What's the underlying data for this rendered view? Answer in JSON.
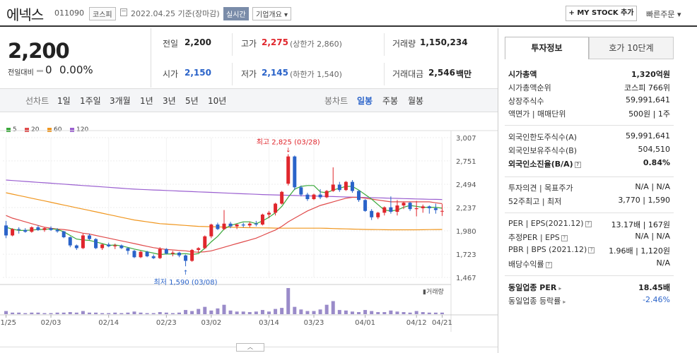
{
  "header": {
    "name": "에넥스",
    "code": "011090",
    "market": "코스피",
    "date": "2022.04.25 기준(장마감)",
    "realtime": "실시간",
    "overview": "기업개요 ▾",
    "mystock": "+ MY STOCK 추가",
    "quick_order": "빠른주문 ▾"
  },
  "price": {
    "current": "2,200",
    "change_label": "전일대비",
    "change": "0",
    "change_pct": "0.00%"
  },
  "quote": {
    "prev_label": "전일",
    "prev": "2,200",
    "high_label": "고가",
    "high": "2,275",
    "upper_limit": "(상한가 2,860)",
    "volume_label": "거래량",
    "volume": "1,150,234",
    "open_label": "시가",
    "open": "2,150",
    "low_label": "저가",
    "low": "2,145",
    "lower_limit": "(하한가 1,540)",
    "amount_label": "거래대금",
    "amount": "2,546",
    "amount_unit": "백만"
  },
  "toolbar": {
    "line_label": "선차트",
    "line_periods": [
      "1일",
      "1주일",
      "3개월",
      "1년",
      "3년",
      "5년",
      "10년"
    ],
    "candle_label": "봉차트",
    "candle_periods": [
      "일봉",
      "주봉",
      "월봉"
    ],
    "selected": "일봉"
  },
  "legend": [
    {
      "name": "5",
      "color": "#3aa83a"
    },
    {
      "name": "20",
      "color": "#e04a4a"
    },
    {
      "name": "60",
      "color": "#f0961e"
    },
    {
      "name": "120",
      "color": "#9a5fd0"
    }
  ],
  "chart_data": {
    "type": "candlestick",
    "y_ticks": [
      "3,007",
      "2,751",
      "2,494",
      "2,237",
      "1,980",
      "1,723",
      "1,467"
    ],
    "ylim": [
      1467,
      3007
    ],
    "x_ticks": [
      "01/25",
      "02/03",
      "02/14",
      "02/23",
      "03/02",
      "03/14",
      "03/23",
      "04/01",
      "04/12",
      "04/21"
    ],
    "annotations": {
      "high": "최고 2,825 (03/28)",
      "low": "최저 1,590 (03/08)"
    },
    "volume_label": "거래량",
    "candles": [
      [
        2040,
        2090,
        1900,
        1930
      ],
      [
        1930,
        2010,
        1920,
        2000
      ],
      [
        2000,
        2020,
        1950,
        1990
      ],
      [
        1990,
        2010,
        1960,
        1970
      ],
      [
        1970,
        2030,
        1960,
        2020
      ],
      [
        2020,
        2040,
        1980,
        1990
      ],
      [
        1990,
        2020,
        1970,
        2010
      ],
      [
        2010,
        2030,
        1980,
        1990
      ],
      [
        1990,
        2010,
        1960,
        1975
      ],
      [
        1975,
        1980,
        1900,
        1910
      ],
      [
        1910,
        1920,
        1800,
        1820
      ],
      [
        1820,
        1830,
        1770,
        1790
      ],
      [
        1790,
        1950,
        1780,
        1930
      ],
      [
        1930,
        1950,
        1880,
        1890
      ],
      [
        1890,
        1900,
        1780,
        1790
      ],
      [
        1790,
        1840,
        1770,
        1830
      ],
      [
        1830,
        1850,
        1800,
        1810
      ],
      [
        1810,
        1840,
        1780,
        1820
      ],
      [
        1820,
        1830,
        1780,
        1790
      ],
      [
        1790,
        1800,
        1720,
        1760
      ],
      [
        1760,
        1770,
        1680,
        1690
      ],
      [
        1690,
        1760,
        1680,
        1750
      ],
      [
        1750,
        1760,
        1690,
        1700
      ],
      [
        1700,
        1720,
        1670,
        1680
      ],
      [
        1680,
        1800,
        1670,
        1780
      ],
      [
        1780,
        1790,
        1720,
        1730
      ],
      [
        1730,
        1760,
        1700,
        1740
      ],
      [
        1740,
        1750,
        1690,
        1710
      ],
      [
        1710,
        1720,
        1590,
        1650
      ],
      [
        1650,
        1780,
        1640,
        1770
      ],
      [
        1770,
        1800,
        1740,
        1790
      ],
      [
        1790,
        1930,
        1780,
        1920
      ],
      [
        1920,
        2060,
        1900,
        2050
      ],
      [
        2050,
        2070,
        1990,
        2000
      ],
      [
        2000,
        2210,
        1990,
        2060
      ],
      [
        2060,
        2080,
        2010,
        2030
      ],
      [
        2030,
        2060,
        2000,
        2050
      ],
      [
        2050,
        2070,
        2020,
        2040
      ],
      [
        2040,
        2080,
        2020,
        2060
      ],
      [
        2060,
        2090,
        2030,
        2050
      ],
      [
        2050,
        2170,
        2040,
        2160
      ],
      [
        2160,
        2200,
        2120,
        2180
      ],
      [
        2180,
        2290,
        2150,
        2280
      ],
      [
        2280,
        2420,
        2270,
        2410
      ],
      [
        2500,
        2825,
        2480,
        2800
      ],
      [
        2800,
        2810,
        2430,
        2460
      ],
      [
        2460,
        2480,
        2360,
        2380
      ],
      [
        2380,
        2400,
        2310,
        2330
      ],
      [
        2330,
        2390,
        2320,
        2380
      ],
      [
        2380,
        2440,
        2330,
        2350
      ],
      [
        2350,
        2430,
        2340,
        2420
      ],
      [
        2420,
        2680,
        2410,
        2490
      ],
      [
        2490,
        2520,
        2410,
        2430
      ],
      [
        2430,
        2530,
        2420,
        2520
      ],
      [
        2520,
        2540,
        2400,
        2420
      ],
      [
        2420,
        2430,
        2300,
        2320
      ],
      [
        2320,
        2330,
        2190,
        2200
      ],
      [
        2200,
        2220,
        2100,
        2130
      ],
      [
        2130,
        2190,
        2110,
        2180
      ],
      [
        2180,
        2250,
        2150,
        2240
      ],
      [
        2240,
        2360,
        2170,
        2190
      ],
      [
        2190,
        2320,
        2150,
        2260
      ],
      [
        2260,
        2300,
        2220,
        2290
      ],
      [
        2290,
        2300,
        2200,
        2220
      ],
      [
        2220,
        2310,
        2140,
        2230
      ],
      [
        2230,
        2270,
        2180,
        2250
      ],
      [
        2250,
        2260,
        2170,
        2230
      ],
      [
        2230,
        2280,
        2170,
        2210
      ],
      [
        2200,
        2275,
        2145,
        2200
      ]
    ],
    "volumes": [
      6,
      3,
      3,
      2,
      3,
      3,
      2,
      2,
      3,
      3,
      4,
      3,
      6,
      3,
      3,
      2,
      2,
      3,
      2,
      3,
      5,
      3,
      2,
      2,
      4,
      3,
      2,
      3,
      8,
      6,
      10,
      14,
      7,
      11,
      18,
      7,
      5,
      5,
      4,
      5,
      8,
      5,
      10,
      12,
      50,
      14,
      9,
      6,
      6,
      9,
      18,
      25,
      8,
      7,
      5,
      4,
      8,
      6,
      4,
      4,
      7,
      5,
      4,
      3,
      6,
      4,
      3,
      3,
      3
    ],
    "ma5": [
      2020,
      2000,
      1985,
      1985,
      1990,
      1995,
      1997,
      2002,
      1997,
      1970,
      1930,
      1890,
      1880,
      1875,
      1858,
      1840,
      1820,
      1825,
      1815,
      1798,
      1780,
      1765,
      1750,
      1735,
      1720,
      1725,
      1727,
      1725,
      1730,
      1720,
      1730,
      1790,
      1860,
      1920,
      2000,
      2040,
      2060,
      2080,
      2080,
      2060,
      2090,
      2130,
      2180,
      2250,
      2350,
      2440,
      2470,
      2480,
      2480,
      2410,
      2400,
      2430,
      2450,
      2470,
      2470,
      2430,
      2380,
      2330,
      2270,
      2210,
      2200,
      2210,
      2240,
      2260,
      2250,
      2240,
      2240,
      2240,
      2230
    ],
    "ma20": [
      2150,
      2120,
      2100,
      2080,
      2060,
      2040,
      2020,
      2010,
      2000,
      1995,
      1985,
      1970,
      1955,
      1945,
      1930,
      1915,
      1900,
      1885,
      1870,
      1855,
      1840,
      1825,
      1810,
      1795,
      1785,
      1775,
      1770,
      1765,
      1760,
      1750,
      1745,
      1750,
      1760,
      1780,
      1800,
      1820,
      1840,
      1860,
      1880,
      1900,
      1930,
      1960,
      1990,
      2030,
      2080,
      2120,
      2160,
      2200,
      2230,
      2260,
      2280,
      2300,
      2320,
      2340,
      2350,
      2350,
      2340,
      2330,
      2320,
      2310,
      2300,
      2300,
      2300,
      2300,
      2300,
      2300,
      2300,
      2290,
      2280
    ],
    "ma60": [
      2400,
      2385,
      2370,
      2355,
      2340,
      2325,
      2310,
      2295,
      2280,
      2265,
      2250,
      2235,
      2220,
      2205,
      2190,
      2175,
      2160,
      2145,
      2130,
      2115,
      2100,
      2090,
      2080,
      2070,
      2060,
      2055,
      2050,
      2045,
      2040,
      2035,
      2030,
      2028,
      2026,
      2024,
      2022,
      2020,
      2018,
      2016,
      2015,
      2014,
      2013,
      2012,
      2011,
      2010,
      2010,
      2010,
      2010,
      2010,
      2010,
      2010,
      2008,
      2006,
      2004,
      2002,
      2000,
      1998,
      1996,
      1995,
      1994,
      1993,
      1992,
      1992,
      1992,
      1992,
      1992,
      1993,
      1994,
      1995,
      1996
    ],
    "ma120": [
      2540,
      2535,
      2530,
      2525,
      2520,
      2515,
      2510,
      2505,
      2500,
      2495,
      2490,
      2485,
      2480,
      2475,
      2470,
      2465,
      2460,
      2455,
      2450,
      2445,
      2440,
      2437,
      2434,
      2431,
      2428,
      2425,
      2422,
      2419,
      2416,
      2413,
      2410,
      2407,
      2404,
      2401,
      2398,
      2395,
      2392,
      2389,
      2386,
      2383,
      2380,
      2378,
      2376,
      2374,
      2372,
      2370,
      2368,
      2366,
      2364,
      2362,
      2360,
      2358,
      2356,
      2354,
      2352,
      2350,
      2348,
      2346,
      2344,
      2342,
      2340,
      2338,
      2336,
      2334,
      2332,
      2330,
      2328,
      2327,
      2326
    ]
  },
  "invest": {
    "tab1": "투자정보",
    "tab2": "호가 10단계",
    "rows": [
      {
        "label": "시가총액",
        "value": "1,320억원",
        "bold": true
      },
      {
        "label": "시가총액순위",
        "value": "코스피 766위"
      },
      {
        "label": "상장주식수",
        "value": "59,991,641"
      },
      {
        "label": "액면가 | 매매단위",
        "value": "500원 | 1주"
      },
      {
        "label": "외국인한도주식수(A)",
        "value": "59,991,641"
      },
      {
        "label": "외국인보유주식수(B)",
        "value": "504,510"
      },
      {
        "label": "외국인소진율(B/A)",
        "value": "0.84%",
        "bold": true
      },
      {
        "label": "투자의견 | 목표주가",
        "value": "N/A | N/A"
      },
      {
        "label": "52주최고 | 최저",
        "value": "3,770 | 1,590"
      },
      {
        "label": "PER | EPS(2021.12)",
        "value": "13.17배 | 167원"
      },
      {
        "label": "추정PER | EPS",
        "value": "N/A | N/A"
      },
      {
        "label": "PBR | BPS (2021.12)",
        "value": "1.96배 | 1,120원"
      },
      {
        "label": "배당수익률",
        "value": "N/A"
      },
      {
        "label": "동일업종 PER",
        "value": "18.45배",
        "bold": true
      },
      {
        "label": "동일업종 등락률",
        "value": "-2.46%",
        "blue": true
      }
    ]
  },
  "collapse_icon": "chevron-up-icon"
}
